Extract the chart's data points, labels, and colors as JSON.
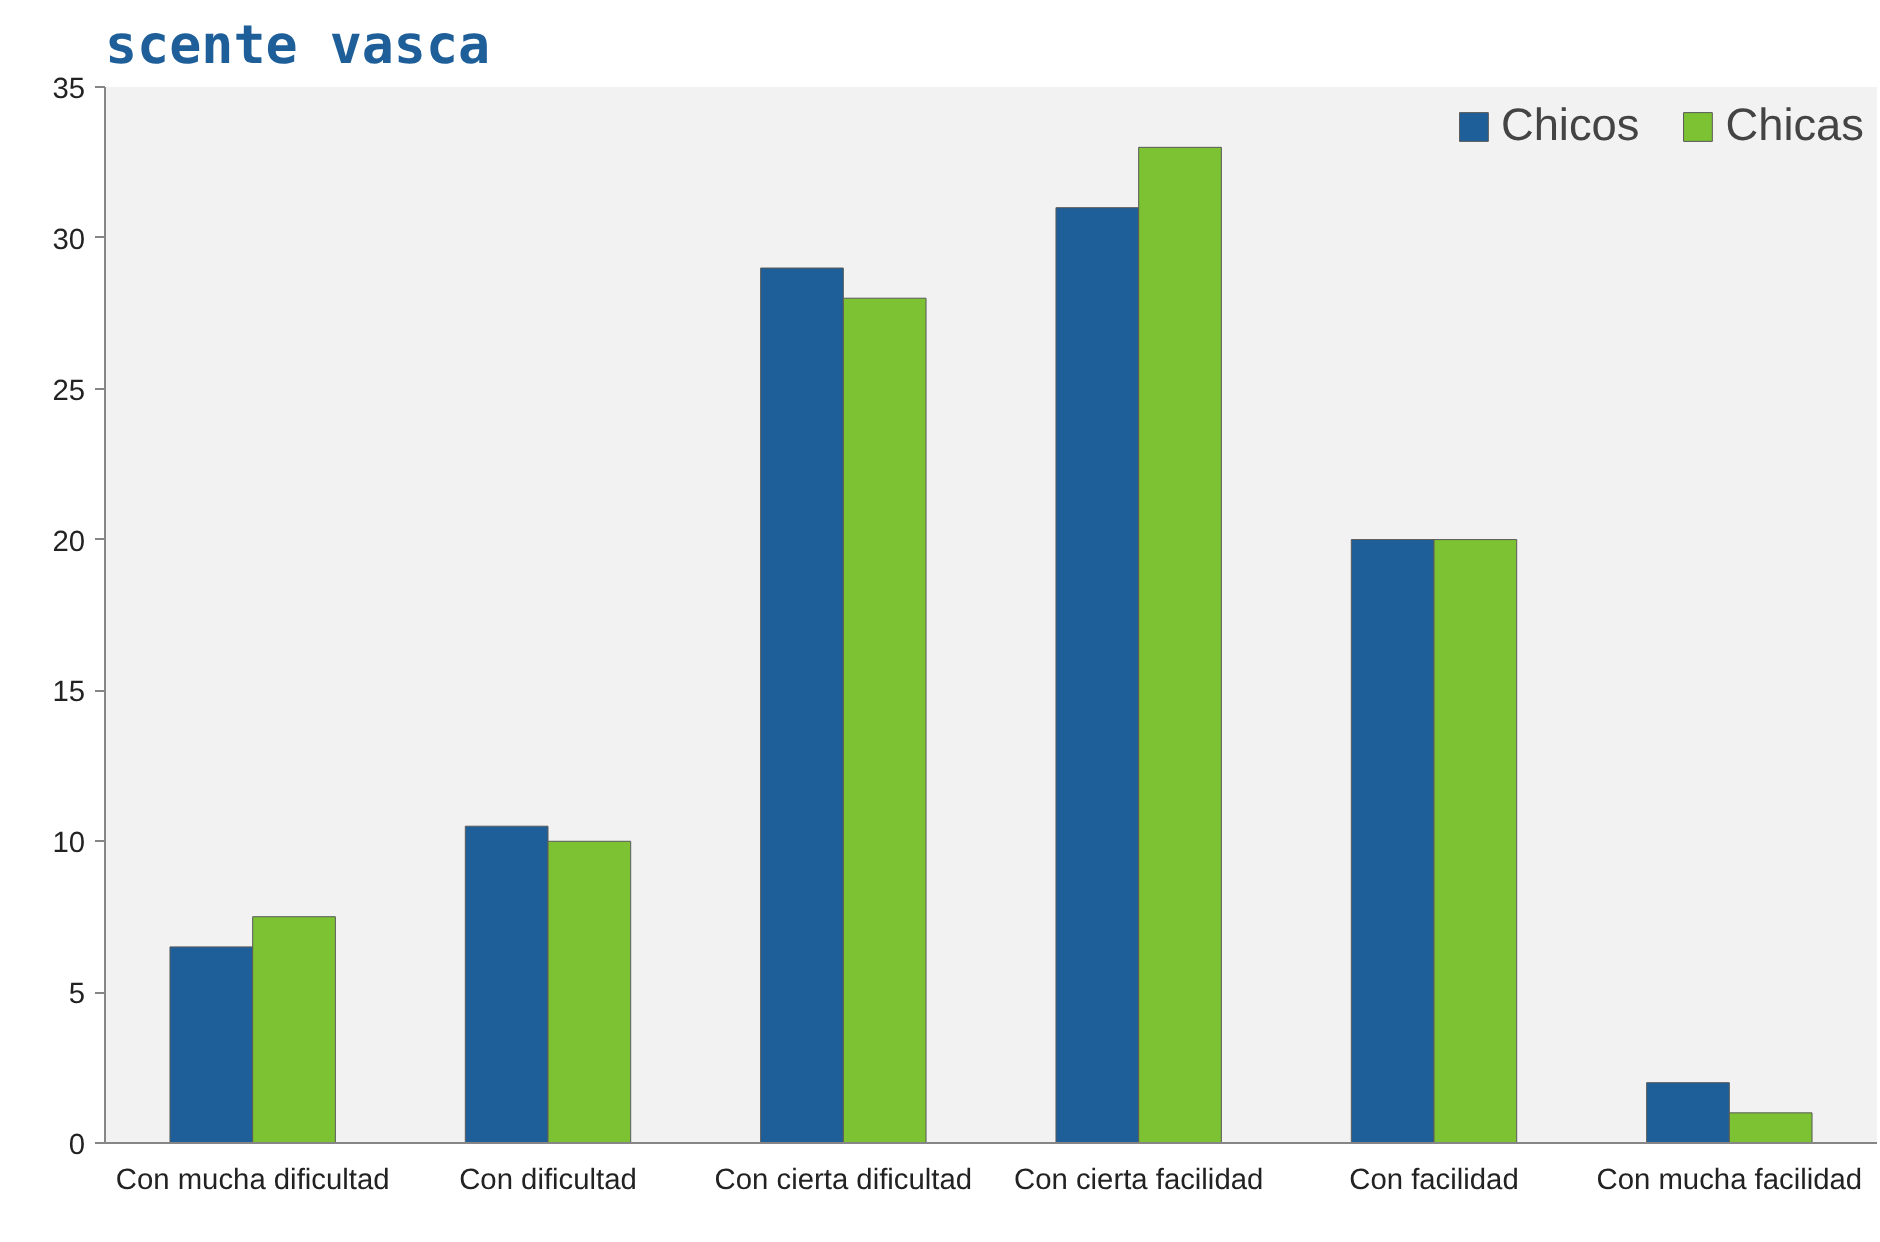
{
  "chart_data": {
    "type": "bar",
    "title": "scente vasca",
    "categories": [
      "Con mucha dificultad",
      "Con dificultad",
      "Con cierta dificultad",
      "Con cierta facilidad",
      "Con facilidad",
      "Con mucha facilidad"
    ],
    "series": [
      {
        "name": "Chicos",
        "color": "#1f5f99",
        "values": [
          6.5,
          10.5,
          29,
          31,
          20,
          2
        ]
      },
      {
        "name": "Chicas",
        "color": "#7cc232",
        "values": [
          7.5,
          10,
          28,
          33,
          20,
          1
        ]
      }
    ],
    "ylim": [
      0,
      35
    ],
    "yticks": [
      0,
      5,
      10,
      15,
      20,
      25,
      30,
      35
    ],
    "grid": false,
    "legend": "top right"
  }
}
